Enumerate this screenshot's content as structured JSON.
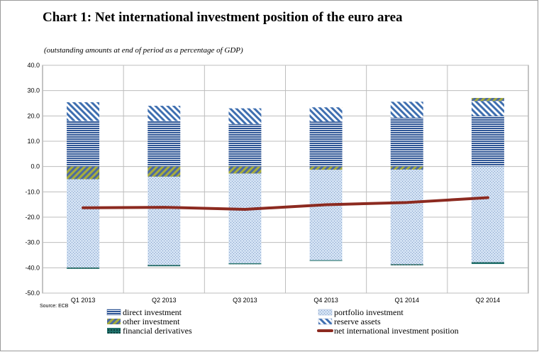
{
  "title": "Chart 1: Net international investment position of the euro area",
  "subtitle": "(outstanding amounts at end of period as a percentage of GDP)",
  "source": "Source: ECB",
  "colors": {
    "direct": "#2e5595",
    "portfolio": "#c9daf0",
    "other": "#9aa23a",
    "reserve": "#3f6fb0",
    "derivatives": "#1f6f6a",
    "line": "#8c2a20"
  },
  "chart_data": {
    "type": "bar",
    "stacked": true,
    "categories": [
      "Q1 2013",
      "Q2 2013",
      "Q3 2013",
      "Q4 2013",
      "Q1 2014",
      "Q2 2014"
    ],
    "ylim": [
      -50,
      40
    ],
    "yticks": [
      "40.0",
      "30.0",
      "20.0",
      "10.0",
      "0.0",
      "-10.0",
      "-20.0",
      "-30.0",
      "-40.0",
      "-50.0"
    ],
    "grid": true,
    "legend_position": "bottom",
    "series": [
      {
        "key": "direct",
        "name": "direct investment",
        "values": [
          18.0,
          18.0,
          16.8,
          17.8,
          19.3,
          20.0
        ]
      },
      {
        "key": "portfolio",
        "name": "portfolio investment",
        "values": [
          -34.9,
          -34.9,
          -35.4,
          -35.7,
          -37.4,
          -37.8
        ]
      },
      {
        "key": "other",
        "name": "other investment",
        "values": [
          -5.0,
          -4.0,
          -2.8,
          -1.3,
          -1.2,
          1.2
        ]
      },
      {
        "key": "reserve",
        "name": "reserve assets",
        "values": [
          7.4,
          6.0,
          6.2,
          5.6,
          6.3,
          5.9
        ]
      },
      {
        "key": "derivatives",
        "name": "financial derivatives",
        "values": [
          -0.5,
          -0.5,
          -0.4,
          -0.3,
          -0.4,
          -0.7
        ]
      }
    ],
    "line_series": {
      "key": "line",
      "name": "net international investment position",
      "values": [
        -16.3,
        -16.1,
        -16.9,
        -15.1,
        -14.2,
        -12.3
      ]
    }
  }
}
